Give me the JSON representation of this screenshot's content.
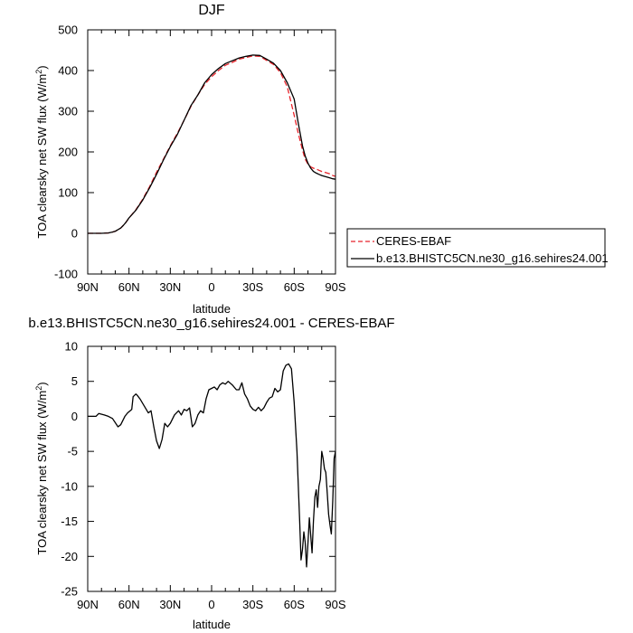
{
  "figure": {
    "top_title": "DJF",
    "bottom_title": "b.e13.BHISTC5CN.ne30_g16.sehires24.001 - CERES-EBAF"
  },
  "chart_data": [
    {
      "type": "line",
      "title": "DJF",
      "xlabel": "latitude",
      "ylabel": "TOA clearsky net SW flux (W/m²)",
      "ylabel_main": "TOA clearsky net SW flux (W/m",
      "ylabel_sup": "2",
      "ylabel_end": ")",
      "xlim": [
        90,
        -90
      ],
      "ylim": [
        -100,
        500
      ],
      "x_ticks": [
        90,
        60,
        30,
        0,
        -30,
        -60,
        -90
      ],
      "x_tick_labels": [
        "90N",
        "60N",
        "30N",
        "0",
        "30S",
        "60S",
        "90S"
      ],
      "y_ticks": [
        -100,
        0,
        100,
        200,
        300,
        400,
        500
      ],
      "y_tick_labels": [
        "-100",
        "0",
        "100",
        "200",
        "300",
        "400",
        "500"
      ],
      "legend_placement": "right",
      "series": [
        {
          "name": "CERES-EBAF",
          "color": "#e8232a",
          "style": "dashed",
          "x": [
            90,
            85,
            80,
            75,
            72,
            70,
            68,
            66,
            64,
            62,
            60,
            55,
            50,
            45,
            40,
            35,
            30,
            25,
            20,
            15,
            10,
            5,
            0,
            -5,
            -10,
            -15,
            -20,
            -25,
            -30,
            -35,
            -40,
            -45,
            -50,
            -55,
            -60,
            -63,
            -66,
            -68,
            -70,
            -72,
            -74,
            -76,
            -78,
            -80,
            -82,
            -84,
            -86,
            -88,
            -90
          ],
          "values": [
            0,
            0,
            0,
            1,
            3,
            5,
            9,
            13,
            20,
            28,
            38,
            58,
            84,
            115,
            150,
            182,
            215,
            245,
            278,
            312,
            340,
            366,
            385,
            400,
            413,
            420,
            428,
            432,
            436,
            435,
            425,
            415,
            395,
            360,
            290,
            245,
            205,
            182,
            170,
            163,
            160,
            158,
            155,
            152,
            150,
            148,
            146,
            142,
            140
          ]
        },
        {
          "name": "b.e13.BHISTC5CN.ne30_g16.sehires24.001",
          "color": "#000000",
          "style": "solid",
          "x": [
            90,
            85,
            80,
            75,
            72,
            70,
            68,
            66,
            64,
            62,
            60,
            55,
            50,
            45,
            40,
            35,
            30,
            25,
            20,
            15,
            10,
            5,
            0,
            -5,
            -10,
            -15,
            -20,
            -25,
            -30,
            -35,
            -40,
            -45,
            -50,
            -55,
            -60,
            -63,
            -66,
            -68,
            -70,
            -72,
            -74,
            -76,
            -78,
            -80,
            -82,
            -84,
            -86,
            -88,
            -90
          ],
          "values": [
            0,
            0,
            0,
            1,
            3,
            5,
            9,
            13,
            20,
            28,
            38,
            57,
            82,
            112,
            145,
            180,
            213,
            242,
            278,
            314,
            340,
            370,
            390,
            405,
            417,
            424,
            431,
            435,
            438,
            437,
            428,
            418,
            400,
            370,
            330,
            270,
            215,
            190,
            172,
            160,
            152,
            148,
            145,
            142,
            140,
            138,
            136,
            134,
            133
          ]
        }
      ]
    },
    {
      "type": "line",
      "title": "b.e13.BHISTC5CN.ne30_g16.sehires24.001 - CERES-EBAF",
      "xlabel": "latitude",
      "ylabel": "TOA clearsky net SW flux (W/m²)",
      "ylabel_main": "TOA clearsky net SW flux (W/m",
      "ylabel_sup": "2",
      "ylabel_end": ")",
      "xlim": [
        90,
        -90
      ],
      "ylim": [
        -25,
        10
      ],
      "x_ticks": [
        90,
        60,
        30,
        0,
        -30,
        -60,
        -90
      ],
      "x_tick_labels": [
        "90N",
        "60N",
        "30N",
        "0",
        "30S",
        "60S",
        "90S"
      ],
      "y_ticks": [
        -25,
        -20,
        -15,
        -10,
        -5,
        0,
        5,
        10
      ],
      "y_tick_labels": [
        "-25",
        "-20",
        "-15",
        "-10",
        "-5",
        "0",
        "5",
        "10"
      ],
      "series": [
        {
          "name": "",
          "color": "#000000",
          "style": "solid",
          "x": [
            90,
            84,
            82,
            78,
            75,
            72,
            68,
            66,
            63,
            61,
            58,
            57,
            55,
            54,
            52,
            49,
            46,
            44,
            42,
            40,
            38,
            36,
            34,
            32,
            30,
            27,
            24,
            22,
            20,
            18,
            16,
            14,
            12,
            10,
            8,
            6,
            4,
            2,
            0,
            -2,
            -4,
            -6,
            -8,
            -10,
            -12,
            -15,
            -18,
            -20,
            -22,
            -24,
            -26,
            -28,
            -30,
            -32,
            -34,
            -36,
            -38,
            -40,
            -42,
            -44,
            -46,
            -48,
            -50,
            -52,
            -54,
            -56,
            -58,
            -60,
            -62,
            -63,
            -64,
            -65,
            -66,
            -67,
            -68,
            -69,
            -70,
            -71,
            -72,
            -73,
            -74,
            -75,
            -76,
            -77,
            -78,
            -79,
            -80,
            -81,
            -82,
            -83,
            -84,
            -85,
            -86,
            -87,
            -88,
            -89,
            -90
          ],
          "values": [
            0,
            0,
            0.4,
            0.2,
            0,
            -0.3,
            -1.5,
            -1.2,
            0,
            0.5,
            1,
            2.8,
            3.2,
            3,
            2.5,
            1.5,
            0.5,
            0.8,
            -1.5,
            -3.5,
            -4.6,
            -3.3,
            -1,
            -1.5,
            -1,
            0.2,
            0.8,
            0.2,
            1,
            0.8,
            1.2,
            -1.5,
            -1,
            0.2,
            0.8,
            0.5,
            2.5,
            3.8,
            4,
            4.2,
            3.8,
            4.5,
            4.8,
            4.6,
            5,
            4.5,
            3.8,
            3.8,
            4.8,
            3.2,
            2.5,
            1.5,
            1,
            0.8,
            1.3,
            0.8,
            1.2,
            2,
            2.6,
            2.8,
            4,
            3.5,
            3.8,
            6.5,
            7.3,
            7.5,
            6.8,
            2,
            -5,
            -10,
            -15,
            -20.5,
            -19,
            -16.5,
            -18,
            -21.5,
            -18,
            -14.5,
            -17,
            -19.5,
            -15,
            -11.5,
            -10.5,
            -13,
            -10,
            -9,
            -5,
            -6,
            -7.5,
            -8,
            -11,
            -14,
            -15.5,
            -16.8,
            -12,
            -6,
            -5
          ]
        }
      ]
    }
  ]
}
